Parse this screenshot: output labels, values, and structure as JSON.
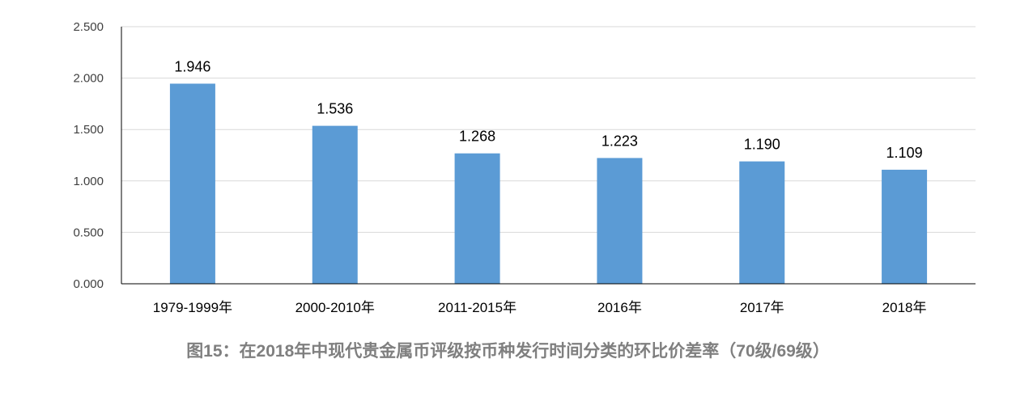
{
  "chart_data": {
    "type": "bar",
    "title": "图15：在2018年中现代贵金属币评级按币种发行时间分类的环比价差率（70级/69级）",
    "xlabel": "",
    "ylabel": "",
    "categories": [
      "1979-1999年",
      "2000-2010年",
      "2011-2015年",
      "2016年",
      "2017年",
      "2018年"
    ],
    "values": [
      1.946,
      1.536,
      1.268,
      1.223,
      1.19,
      1.109
    ],
    "value_labels": [
      "1.946",
      "1.536",
      "1.268",
      "1.223",
      "1.190",
      "1.109"
    ],
    "ylim": [
      0,
      2.5
    ],
    "yticks": [
      0,
      0.5,
      1.0,
      1.5,
      2.0,
      2.5
    ],
    "ytick_labels": [
      "0.000",
      "0.500",
      "1.000",
      "1.500",
      "2.000",
      "2.500"
    ],
    "grid": true,
    "legend": "none",
    "bar_color": "#5b9bd5",
    "grid_color": "#d9d9d9",
    "axis_color": "#000000"
  }
}
